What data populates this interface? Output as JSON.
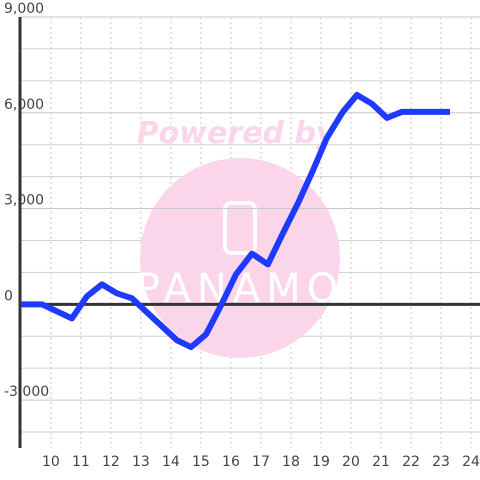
{
  "chart_data": {
    "type": "line",
    "watermark": "Powered by",
    "watermark_logo": "PANAMO",
    "x": [
      9,
      9.7,
      10.7,
      11.2,
      11.7,
      12.2,
      12.7,
      13.2,
      13.7,
      14.2,
      14.67,
      15.17,
      15.67,
      16.17,
      16.7,
      17.23,
      17.73,
      18.23,
      18.7,
      19.2,
      19.73,
      20.2,
      20.7,
      21.2,
      21.7,
      23.3
    ],
    "series": [
      {
        "color": "#1f3aff",
        "values": [
          0,
          0,
          -440,
          250,
          625,
          345,
          190,
          -250,
          -690,
          -1125,
          -1340,
          -940,
          -30,
          940,
          1590,
          1250,
          2220,
          3160,
          4125,
          5220,
          6030,
          6560,
          6280,
          5840,
          6030,
          6030
        ]
      }
    ],
    "xlim": [
      8.97,
      24.3
    ],
    "ylim": [
      -4500,
      9000
    ],
    "xticks": [
      10,
      11,
      12,
      13,
      14,
      15,
      16,
      17,
      18,
      19,
      20,
      21,
      22,
      23,
      24
    ],
    "yticks": [
      {
        "value": -3000,
        "label": "-3,000"
      },
      0,
      {
        "value": 3000,
        "label": "3,000"
      },
      {
        "value": 6000,
        "label": "6,000"
      },
      {
        "value": 9000,
        "label": "9,000"
      }
    ],
    "y_minor_ticks": [
      -4000,
      -2000,
      -1000,
      1000,
      2000,
      4000,
      5000,
      7000,
      8000
    ],
    "grid": true
  }
}
